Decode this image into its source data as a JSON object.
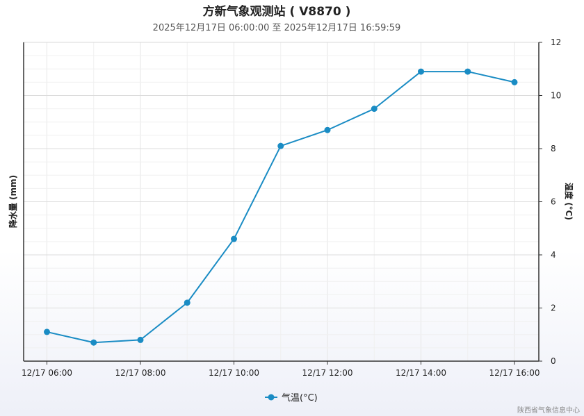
{
  "chart_data": {
    "type": "line",
    "title": "方新气象观测站 ( V8870 )",
    "subtitle": "2025年12月17日 06:00:00 至 2025年12月17日 16:59:59",
    "ylabel_left": "降水量 (mm)",
    "ylabel_right": "温度 (°C)",
    "x_tick_labels": [
      "12/17 06:00",
      "12/17 08:00",
      "12/17 10:00",
      "12/17 12:00",
      "12/17 14:00",
      "12/17 16:00"
    ],
    "y_right_ticks": [
      "0",
      "2",
      "4",
      "6",
      "8",
      "10",
      "12"
    ],
    "ylim_right": [
      0,
      12
    ],
    "x": [
      "06:00",
      "07:00",
      "08:00",
      "09:00",
      "10:00",
      "11:00",
      "12:00",
      "13:00",
      "14:00",
      "15:00",
      "16:00"
    ],
    "series": [
      {
        "name": "气温(°C)",
        "color": "#1a8cc4",
        "values": [
          1.1,
          0.7,
          0.8,
          2.2,
          4.6,
          8.1,
          8.7,
          9.5,
          10.9,
          10.9,
          10.5
        ]
      }
    ],
    "grid": true,
    "legend": "bottom-center"
  },
  "credit": "陕西省气象信息中心"
}
